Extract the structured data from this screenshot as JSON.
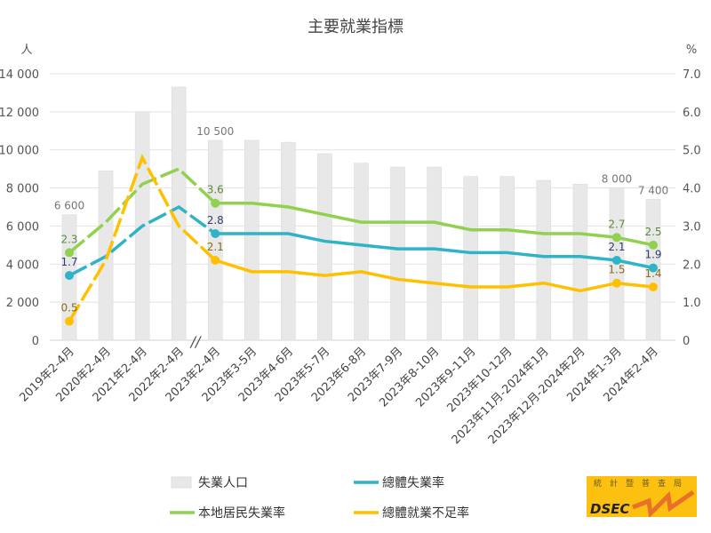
{
  "chart_data": {
    "type": "bar+line",
    "title": "主要就業指標",
    "y_left_unit": "人",
    "y_right_unit": "%",
    "ylim_left": [
      0,
      14000
    ],
    "ylim_right": [
      0,
      7.0
    ],
    "y_left_ticks": [
      "0",
      "2 000",
      "4 000",
      "6 000",
      "8 000",
      "10 000",
      "12 000",
      "14 000"
    ],
    "y_right_ticks": [
      "0",
      "1.0",
      "2.0",
      "3.0",
      "4.0",
      "5.0",
      "6.0",
      "7.0"
    ],
    "grid": true,
    "axis_break_marker": "//",
    "categories": [
      "2019年2-4月",
      "2020年2-4月",
      "2021年2-4月",
      "2022年2-4月",
      "2023年2-4月",
      "2023年3-5月",
      "2023年4-6月",
      "2023年5-7月",
      "2023年6-8月",
      "2023年7-9月",
      "2023年8-10月",
      "2023年9-11月",
      "2023年10-12月",
      "2023年11月-2024年1月",
      "2023年12月-2024年2月",
      "2024年1-3月",
      "2024年2-4月"
    ],
    "bars": {
      "name": "失業人口",
      "color": "#e8e8e8",
      "values": [
        6600,
        8900,
        12000,
        13300,
        10500,
        10500,
        10400,
        9800,
        9300,
        9100,
        9100,
        8600,
        8600,
        8400,
        8200,
        8000,
        7400
      ],
      "labels": {
        "0": "6 600",
        "4": "10 500",
        "15": "8 000",
        "16": "7 400"
      }
    },
    "series": [
      {
        "name": "總體失業率",
        "color": "#2fb3c6",
        "label_color": "#2f3e6e",
        "values": [
          1.7,
          2.2,
          3.0,
          3.5,
          2.8,
          2.8,
          2.8,
          2.6,
          2.5,
          2.4,
          2.4,
          2.3,
          2.3,
          2.2,
          2.2,
          2.1,
          1.9
        ],
        "labels": {
          "0": "1.7",
          "4": "2.8",
          "15": "2.1",
          "16": "1.9"
        }
      },
      {
        "name": "本地居民失業率",
        "color": "#92d050",
        "label_color": "#5b8a3a",
        "values": [
          2.3,
          3.1,
          4.1,
          4.5,
          3.6,
          3.6,
          3.5,
          3.3,
          3.1,
          3.1,
          3.1,
          2.9,
          2.9,
          2.8,
          2.8,
          2.7,
          2.5
        ],
        "labels": {
          "0": "2.3",
          "4": "3.6",
          "15": "2.7",
          "16": "2.5"
        }
      },
      {
        "name": "總體就業不足率",
        "color": "#ffc000",
        "label_color": "#8a6d1a",
        "values": [
          0.5,
          2.1,
          4.8,
          3.0,
          2.1,
          1.8,
          1.8,
          1.7,
          1.8,
          1.6,
          1.5,
          1.4,
          1.4,
          1.5,
          1.3,
          1.5,
          1.4
        ],
        "labels": {
          "0": "0.5",
          "4": "2.1",
          "15": "1.5",
          "16": "1.4"
        }
      }
    ],
    "dashed_until_index": 4,
    "legend_position": "bottom"
  },
  "logo": {
    "chinese": "統計暨普查局",
    "text": "DSEC"
  }
}
